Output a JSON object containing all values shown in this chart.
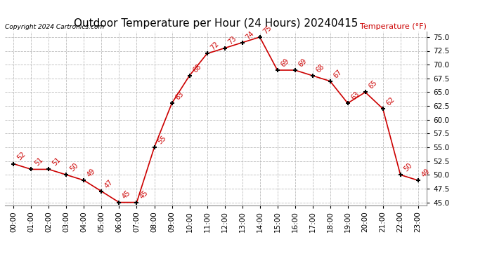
{
  "title": "Outdoor Temperature per Hour (24 Hours) 20240415",
  "copyright": "Copyright 2024 Cartronics.com",
  "legend_label": "Temperature (°F)",
  "hours": [
    "00:00",
    "01:00",
    "02:00",
    "03:00",
    "04:00",
    "05:00",
    "06:00",
    "07:00",
    "08:00",
    "09:00",
    "10:00",
    "11:00",
    "12:00",
    "13:00",
    "14:00",
    "15:00",
    "16:00",
    "17:00",
    "18:00",
    "19:00",
    "20:00",
    "21:00",
    "22:00",
    "23:00"
  ],
  "temps": [
    52,
    51,
    51,
    50,
    49,
    47,
    45,
    45,
    55,
    63,
    68,
    72,
    73,
    74,
    75,
    69,
    69,
    68,
    67,
    63,
    65,
    62,
    50,
    49
  ],
  "ylim_min": 44.5,
  "ylim_max": 76.0,
  "line_color": "#cc0000",
  "marker_color": "black",
  "label_color": "#cc0000",
  "bg_color": "white",
  "grid_color": "#bbbbbb",
  "title_color": "black",
  "copyright_color": "black",
  "legend_color": "#cc0000",
  "title_fontsize": 11,
  "tick_fontsize": 7.5,
  "label_fontsize": 7,
  "annot_fontsize": 7
}
